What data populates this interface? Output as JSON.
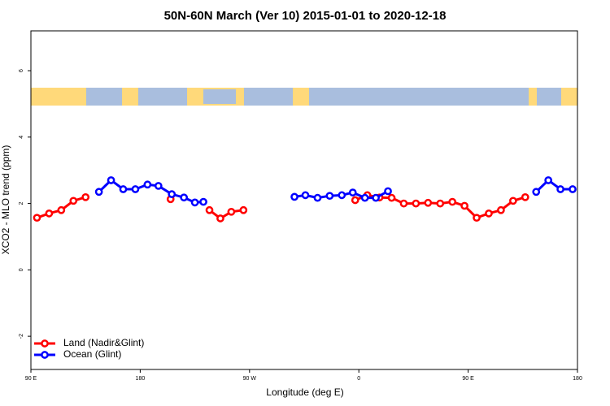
{
  "chart_data": {
    "type": "line",
    "title": "50N-60N March (Ver 10)   2015-01-01 to 2020-12-18",
    "x_label": "Longitude (deg E)",
    "y_label": "XCO2 - MLO trend (ppm)",
    "xlim": [
      90,
      540
    ],
    "ylim": [
      -3,
      7.2
    ],
    "xticks": [
      {
        "value": 90,
        "label": "90 E"
      },
      180,
      {
        "value": 270,
        "label": "90 W"
      },
      {
        "value": 360,
        "label": "0"
      },
      {
        "value": 450,
        "label": "90 E"
      },
      {
        "value": 540,
        "label": "180"
      }
    ],
    "yticks": [
      -2,
      0,
      2,
      4,
      6
    ],
    "legend": "bottomleft",
    "series": [
      {
        "name": "Land (Nadir&Glint)",
        "color": "#ff0000",
        "x": [
          95,
          105,
          115,
          125,
          135,
          null,
          205,
          null,
          237,
          246,
          255,
          265,
          null,
          357,
          367,
          377,
          387,
          397,
          407,
          417,
          427,
          437,
          447,
          457,
          467,
          477,
          487,
          497
        ],
        "values": [
          1.57,
          1.7,
          1.8,
          2.08,
          2.19,
          null,
          2.13,
          null,
          1.8,
          1.55,
          1.75,
          1.8,
          null,
          2.1,
          2.25,
          2.18,
          2.17,
          2.0,
          2.0,
          2.02,
          2.0,
          2.05,
          1.93,
          1.57,
          1.7,
          1.8,
          2.08,
          2.19
        ]
      },
      {
        "name": "Ocean (Glint)",
        "color": "#0000ff",
        "x": [
          146,
          156,
          166,
          176,
          186,
          195,
          206,
          216,
          225,
          232,
          null,
          307,
          316,
          326,
          336,
          346,
          355,
          365,
          374,
          384,
          null,
          506,
          516,
          526,
          536
        ],
        "values": [
          2.35,
          2.7,
          2.43,
          2.43,
          2.57,
          2.53,
          2.28,
          2.18,
          2.03,
          2.05,
          null,
          2.2,
          2.25,
          2.17,
          2.23,
          2.25,
          2.33,
          2.17,
          2.17,
          2.37,
          null,
          2.35,
          2.7,
          2.43,
          2.43
        ]
      }
    ]
  }
}
